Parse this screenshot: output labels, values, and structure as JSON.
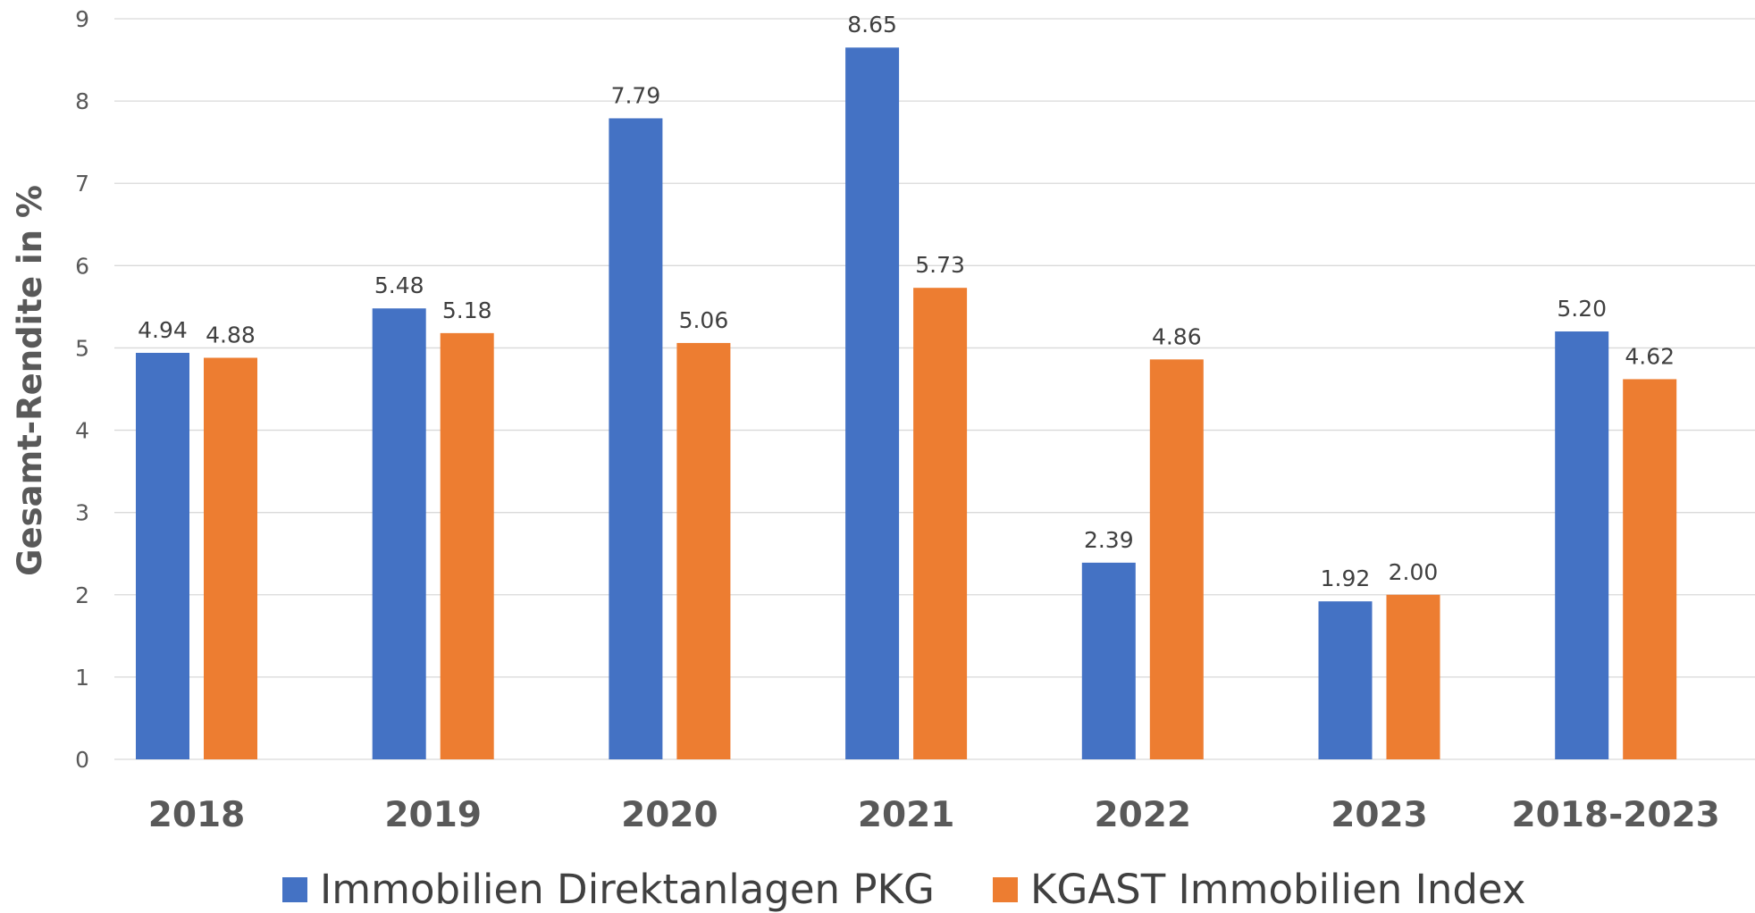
{
  "chart_data": {
    "type": "bar",
    "ylabel": "Gesamt-Rendite in %",
    "ylim": [
      0,
      9
    ],
    "yticks": [
      "0",
      "1",
      "2",
      "3",
      "4",
      "5",
      "6",
      "7",
      "8",
      "9"
    ],
    "categories": [
      "2018",
      "2019",
      "2020",
      "2021",
      "2022",
      "2023",
      "2018-2023"
    ],
    "series": [
      {
        "name": "Immobilien Direktanlagen PKG",
        "color": "#4472C4",
        "values": [
          4.94,
          5.48,
          7.79,
          8.65,
          2.39,
          1.92,
          5.2
        ],
        "labels": [
          "4.94",
          "5.48",
          "7.79",
          "8.65",
          "2.39",
          "1.92",
          "5.20"
        ]
      },
      {
        "name": "KGAST Immobilien Index",
        "color": "#ED7D31",
        "values": [
          4.88,
          5.18,
          5.06,
          5.73,
          4.86,
          2.0,
          4.62
        ],
        "labels": [
          "4.88",
          "5.18",
          "5.06",
          "5.73",
          "4.86",
          "2.00",
          "4.62"
        ]
      }
    ],
    "grid": true,
    "legend_position": "bottom"
  }
}
